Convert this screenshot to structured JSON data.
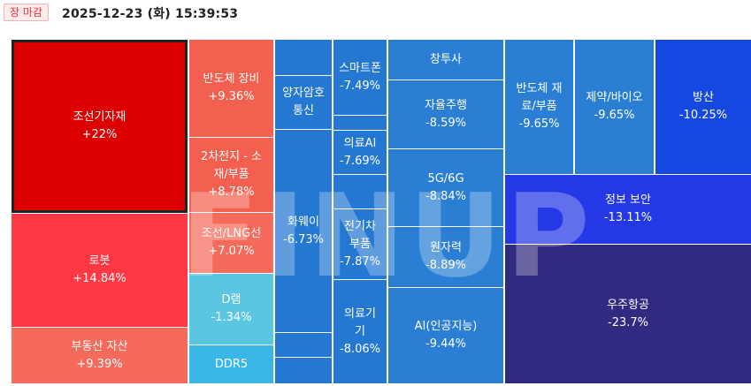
{
  "header": {
    "status": "장 마감",
    "timestamp": "2025-12-23 (화) 15:39:53"
  },
  "watermark": "FINUP",
  "tiles": {
    "shipbuilding": {
      "name": "조선기자재",
      "pct": "+22%"
    },
    "robot": {
      "name": "로봇",
      "pct": "+14.84%"
    },
    "realestate": {
      "name": "부동산 자산",
      "pct": "+9.39%"
    },
    "semi_equip": {
      "name": "반도체 장비",
      "pct": "+9.36%"
    },
    "battery_mat": {
      "name": "2차전지 - 소재/부품",
      "pct": "+8.78%"
    },
    "lng_ship": {
      "name": "조선/LNG선",
      "pct": "+7.07%"
    },
    "dram": {
      "name": "D램",
      "pct": "-1.34%"
    },
    "ddr5": {
      "name": "DDR5",
      "pct": ""
    },
    "quantum": {
      "name": "양자암호통신",
      "pct": ""
    },
    "huawei": {
      "name": "화웨이",
      "pct": "-6.73%"
    },
    "smartphone": {
      "name": "스마트폰",
      "pct": "-7.49%"
    },
    "medical_ai": {
      "name": "의료AI",
      "pct": "-7.69%"
    },
    "ev_parts": {
      "name": "전기차 부품",
      "pct": "-7.87%"
    },
    "medical_device": {
      "name": "의료기기",
      "pct": "-8.06%"
    },
    "vc": {
      "name": "창투사",
      "pct": ""
    },
    "autonomous": {
      "name": "자율주행",
      "pct": "-8.59%"
    },
    "g5g6": {
      "name": "5G/6G",
      "pct": "-8.84%"
    },
    "nuclear": {
      "name": "원자력",
      "pct": "-8.89%"
    },
    "ai": {
      "name": "AI(인공지능)",
      "pct": "-9.44%"
    },
    "semi_mat": {
      "name": "반도체 재료/부품",
      "pct": "-9.65%"
    },
    "pharma": {
      "name": "제약/바이오",
      "pct": "-9.65%"
    },
    "defense": {
      "name": "방산",
      "pct": "-10.25%"
    },
    "infosec": {
      "name": "정보 보안",
      "pct": "-13.11%"
    },
    "aerospace": {
      "name": "우주항공",
      "pct": "-23.7%"
    }
  }
}
